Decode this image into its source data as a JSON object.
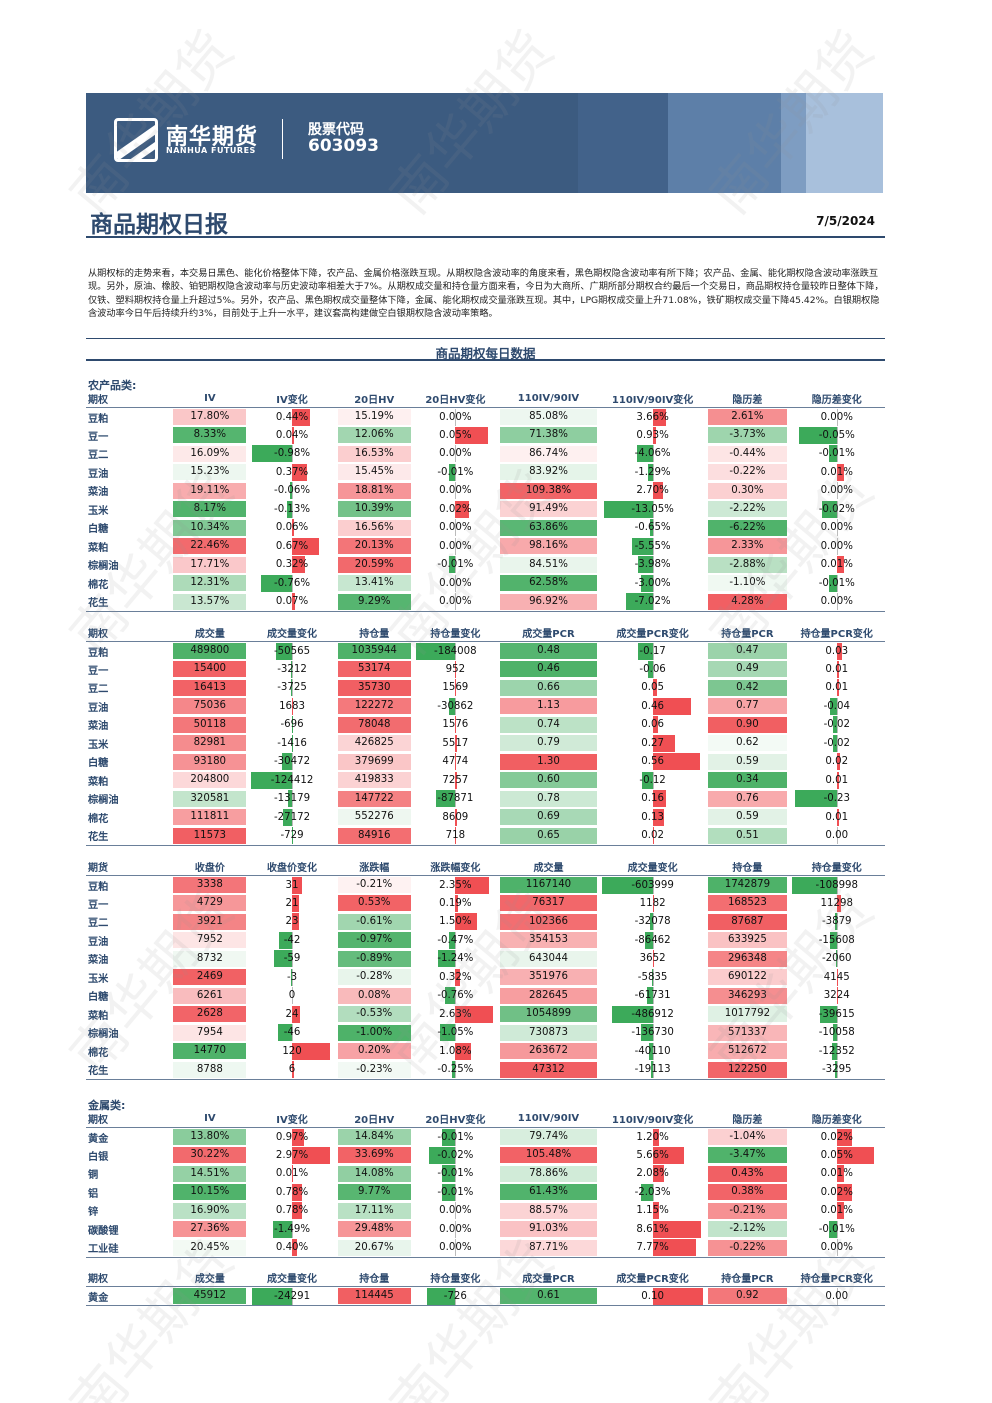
{
  "header": {
    "logo_cn": "南华期货",
    "logo_en": "NANHUA FUTURES",
    "stock_label": "股票代码",
    "stock_code": "603093"
  },
  "title": "商品期权日报",
  "date": "7/5/2024",
  "summary": "从期权标的走势来看，本交易日黑色、能化价格整体下降，农产品、金属价格涨跌互现。从期权隐含波动率的角度来看，黑色期权隐含波动率有所下降；农产品、金属、能化期权隐含波动率涨跌互现。另外，原油、橡胶、铂钯期权隐含波动率与历史波动率相差大于7%。从期权成交量和持仓量方面来看，今日为大商所、广期所部分期权合约最后一个交易日，商品期权持仓量较昨日整体下降，仅铁、塑料期权持仓量上升超过5%。另外，农产品、黑色期权成交量整体下降，金属、能化期权成交量涨跌互现。其中，LPG期权成交量上升71.08%，铁矿期权成交量下降45.42%。白银期权隐含波动率今日午后持续升约3%，目前处于上升一水平，建议套高构建做空白银期权隐含波动率策略。",
  "subtitle": "商品期权每日数据",
  "watermark": "南华期货",
  "colors": {
    "red": "#f04f53",
    "green": "#3caa5a",
    "navy": "#2e4a6e"
  },
  "sections": [
    {
      "label": "农产品类:",
      "tables": [
        {
          "id": "agr_iv",
          "headers": [
            "期权",
            "IV",
            "IV变化",
            "20日HV",
            "20日HV变化",
            "110IV/90IV",
            "110IV/90IV变化",
            "隐历差",
            "隐历差变化"
          ],
          "rows": [
            [
              "豆粕",
              "17.80%",
              "0.44%",
              "15.19%",
              "0.00%",
              "85.08%",
              "3.66%",
              "2.61%",
              "0.00%"
            ],
            [
              "豆一",
              "8.33%",
              "0.04%",
              "12.06%",
              "0.05%",
              "71.38%",
              "0.93%",
              "-3.73%",
              "-0.05%"
            ],
            [
              "豆二",
              "16.09%",
              "-0.98%",
              "16.53%",
              "0.00%",
              "86.74%",
              "-4.06%",
              "-0.44%",
              "-0.01%"
            ],
            [
              "豆油",
              "15.23%",
              "0.37%",
              "15.45%",
              "-0.01%",
              "83.92%",
              "-1.29%",
              "-0.22%",
              "0.01%"
            ],
            [
              "菜油",
              "19.11%",
              "-0.06%",
              "18.81%",
              "0.00%",
              "109.38%",
              "2.70%",
              "0.30%",
              "0.00%"
            ],
            [
              "玉米",
              "8.17%",
              "-0.13%",
              "10.39%",
              "0.02%",
              "91.49%",
              "-13.05%",
              "-2.22%",
              "-0.02%"
            ],
            [
              "白糖",
              "10.34%",
              "0.06%",
              "16.56%",
              "0.00%",
              "63.86%",
              "-0.65%",
              "-6.22%",
              "0.00%"
            ],
            [
              "菜粕",
              "22.46%",
              "0.67%",
              "20.13%",
              "0.00%",
              "98.16%",
              "-5.55%",
              "2.33%",
              "0.00%"
            ],
            [
              "棕榈油",
              "17.71%",
              "0.32%",
              "20.59%",
              "-0.01%",
              "84.51%",
              "-3.98%",
              "-2.88%",
              "0.01%"
            ],
            [
              "棉花",
              "12.31%",
              "-0.76%",
              "13.41%",
              "0.00%",
              "62.58%",
              "-3.00%",
              "-1.10%",
              "-0.01%"
            ],
            [
              "花生",
              "13.57%",
              "0.07%",
              "9.29%",
              "0.00%",
              "96.92%",
              "-7.02%",
              "4.28%",
              "0.00%"
            ]
          ],
          "types": [
            "n",
            "h",
            "b",
            "h",
            "b",
            "h",
            "b",
            "h",
            "b"
          ],
          "maxabs": [
            0,
            0,
            1.0,
            0,
            0.06,
            0,
            13.5,
            0,
            0.06
          ],
          "heat": [
            0,
            [
              8,
              23
            ],
            0,
            [
              9,
              21
            ],
            0,
            [
              62,
              110
            ],
            0,
            [
              -6.3,
              4.3
            ],
            0
          ]
        },
        {
          "id": "agr_opt",
          "headers": [
            "期权",
            "成交量",
            "成交量变化",
            "持仓量",
            "持仓量变化",
            "成交量PCR",
            "成交量PCR变化",
            "持仓量PCR",
            "持仓量PCR变化"
          ],
          "rows": [
            [
              "豆粕",
              "489800",
              "-50565",
              "1035944",
              "-184008",
              "0.48",
              "-0.17",
              "0.47",
              "0.03"
            ],
            [
              "豆一",
              "15400",
              "-3212",
              "53174",
              "952",
              "0.46",
              "-0.06",
              "0.49",
              "0.01"
            ],
            [
              "豆二",
              "16413",
              "-3725",
              "35730",
              "1569",
              "0.66",
              "0.05",
              "0.42",
              "0.01"
            ],
            [
              "豆油",
              "75036",
              "1683",
              "122272",
              "-30862",
              "1.13",
              "0.46",
              "0.77",
              "-0.04"
            ],
            [
              "菜油",
              "50118",
              "-696",
              "78048",
              "1576",
              "0.74",
              "0.06",
              "0.90",
              "-0.02"
            ],
            [
              "玉米",
              "82981",
              "-1416",
              "426825",
              "5517",
              "0.79",
              "0.27",
              "0.62",
              "-0.02"
            ],
            [
              "白糖",
              "93180",
              "-30472",
              "379699",
              "4774",
              "1.30",
              "0.56",
              "0.59",
              "0.02"
            ],
            [
              "菜粕",
              "204800",
              "-124412",
              "419833",
              "7257",
              "0.60",
              "-0.12",
              "0.34",
              "0.01"
            ],
            [
              "棕榈油",
              "320581",
              "-13179",
              "147722",
              "-87871",
              "0.78",
              "0.16",
              "0.76",
              "-0.23"
            ],
            [
              "棉花",
              "111811",
              "-27172",
              "552276",
              "8609",
              "0.69",
              "0.13",
              "0.59",
              "0.01"
            ],
            [
              "花生",
              "11573",
              "-729",
              "84916",
              "718",
              "0.65",
              "0.02",
              "0.51",
              "0.00"
            ]
          ],
          "types": [
            "n",
            "h",
            "b",
            "h",
            "b",
            "h",
            "b",
            "h",
            "b"
          ],
          "maxabs": [
            0,
            0,
            125000,
            0,
            185000,
            0,
            0.6,
            0,
            0.25
          ],
          "heat": [
            0,
            [
              11000,
              490000
            ],
            0,
            [
              35000,
              1036000
            ],
            0,
            [
              0.46,
              1.3
            ],
            0,
            [
              0.34,
              0.9
            ],
            0
          ],
          "heatinv": [
            false,
            true,
            false,
            true,
            false,
            false,
            false,
            false,
            false
          ]
        },
        {
          "id": "agr_fut",
          "headers": [
            "期货",
            "收盘价",
            "收盘价变化",
            "涨跌幅",
            "涨跌幅变化",
            "成交量",
            "成交量变化",
            "持仓量",
            "持仓量变化"
          ],
          "rows": [
            [
              "豆粕",
              "3338",
              "31",
              "-0.21%",
              "2.35%",
              "1167140",
              "-603999",
              "1742879",
              "-108998"
            ],
            [
              "豆一",
              "4729",
              "21",
              "0.53%",
              "0.19%",
              "76317",
              "1182",
              "168523",
              "11298"
            ],
            [
              "豆二",
              "3921",
              "23",
              "-0.61%",
              "1.50%",
              "102366",
              "-32078",
              "87687",
              "-3879"
            ],
            [
              "豆油",
              "7952",
              "-42",
              "-0.97%",
              "-0.47%",
              "354153",
              "-86462",
              "633925",
              "-15608"
            ],
            [
              "菜油",
              "8732",
              "-59",
              "-0.89%",
              "-1.24%",
              "643044",
              "3652",
              "296348",
              "-2060"
            ],
            [
              "玉米",
              "2469",
              "-3",
              "-0.28%",
              "0.32%",
              "351976",
              "-5835",
              "690122",
              "4145"
            ],
            [
              "白糖",
              "6261",
              "0",
              "0.08%",
              "-0.76%",
              "282645",
              "-61731",
              "346293",
              "3224"
            ],
            [
              "菜粕",
              "2628",
              "24",
              "-0.53%",
              "2.63%",
              "1054899",
              "-486912",
              "1017792",
              "-39615"
            ],
            [
              "棕榈油",
              "7954",
              "-46",
              "-1.00%",
              "-1.05%",
              "730873",
              "-136730",
              "571337",
              "-10058"
            ],
            [
              "棉花",
              "14770",
              "120",
              "0.20%",
              "1.08%",
              "263672",
              "-40110",
              "512672",
              "-12352"
            ],
            [
              "花生",
              "8788",
              "6",
              "-0.23%",
              "-0.25%",
              "47312",
              "-19113",
              "122250",
              "-3295"
            ]
          ],
          "types": [
            "n",
            "h",
            "b",
            "h",
            "b",
            "h",
            "b",
            "h",
            "b"
          ],
          "maxabs": [
            0,
            0,
            130,
            0,
            2.8,
            0,
            610000,
            0,
            110000
          ],
          "heat": [
            0,
            [
              2400,
              14800
            ],
            0,
            [
              -1.0,
              0.55
            ],
            0,
            [
              47000,
              1170000
            ],
            0,
            [
              87000,
              1745000
            ],
            0
          ],
          "heatinv": [
            false,
            true,
            false,
            false,
            false,
            true,
            false,
            true,
            false
          ]
        }
      ]
    },
    {
      "label": "金属类:",
      "tables": [
        {
          "id": "met_iv",
          "headers": [
            "期权",
            "IV",
            "IV变化",
            "20日HV",
            "20日HV变化",
            "110IV/90IV",
            "110IV/90IV变化",
            "隐历差",
            "隐历差变化"
          ],
          "rows": [
            [
              "黄金",
              "13.80%",
              "0.97%",
              "14.84%",
              "-0.01%",
              "79.74%",
              "1.20%",
              "-1.04%",
              "0.02%"
            ],
            [
              "白银",
              "30.22%",
              "2.97%",
              "33.69%",
              "-0.02%",
              "105.48%",
              "5.66%",
              "-3.47%",
              "0.05%"
            ],
            [
              "铜",
              "14.51%",
              "0.01%",
              "14.08%",
              "-0.01%",
              "78.86%",
              "2.08%",
              "0.43%",
              "0.01%"
            ],
            [
              "铝",
              "10.15%",
              "0.78%",
              "9.77%",
              "-0.01%",
              "61.43%",
              "-2.03%",
              "0.38%",
              "0.02%"
            ],
            [
              "锌",
              "16.90%",
              "0.78%",
              "17.11%",
              "0.00%",
              "88.57%",
              "1.15%",
              "-0.21%",
              "0.01%"
            ],
            [
              "碳酸锂",
              "27.36%",
              "-1.49%",
              "29.48%",
              "0.00%",
              "91.03%",
              "8.61%",
              "-2.12%",
              "-0.01%"
            ],
            [
              "工业硅",
              "20.45%",
              "0.40%",
              "20.67%",
              "0.00%",
              "87.71%",
              "7.77%",
              "-0.22%",
              "0.00%"
            ]
          ],
          "types": [
            "n",
            "h",
            "b",
            "h",
            "b",
            "h",
            "b",
            "h",
            "b"
          ],
          "maxabs": [
            0,
            0,
            3.2,
            0,
            0.03,
            0,
            9,
            0,
            0.06
          ],
          "heat": [
            0,
            [
              10,
              31
            ],
            0,
            [
              9,
              34
            ],
            0,
            [
              61,
              106
            ],
            0,
            [
              -3.5,
              0.45
            ],
            0
          ]
        },
        {
          "id": "met_opt",
          "headers": [
            "期权",
            "成交量",
            "成交量变化",
            "持仓量",
            "持仓量变化",
            "成交量PCR",
            "成交量PCR变化",
            "持仓量PCR",
            "持仓量PCR变化"
          ],
          "rows": [
            [
              "黄金",
              "45912",
              "-24291",
              "114445",
              "-726",
              "0.61",
              "0.10",
              "0.92",
              "0.00"
            ]
          ],
          "types": [
            "n",
            "h",
            "b",
            "h",
            "b",
            "h",
            "b",
            "h",
            "b"
          ],
          "maxabs": [
            0,
            0,
            25000,
            0,
            1000,
            0,
            0.1,
            0,
            0.01
          ],
          "heat": [
            0,
            [
              0,
              46000
            ],
            0,
            [
              0,
              1
            ],
            0,
            [
              0,
              0.62
            ],
            0,
            [
              0,
              1
            ],
            0
          ],
          "heatinv": [
            false,
            true,
            false,
            false,
            false,
            true,
            false,
            false,
            false
          ]
        }
      ]
    }
  ]
}
